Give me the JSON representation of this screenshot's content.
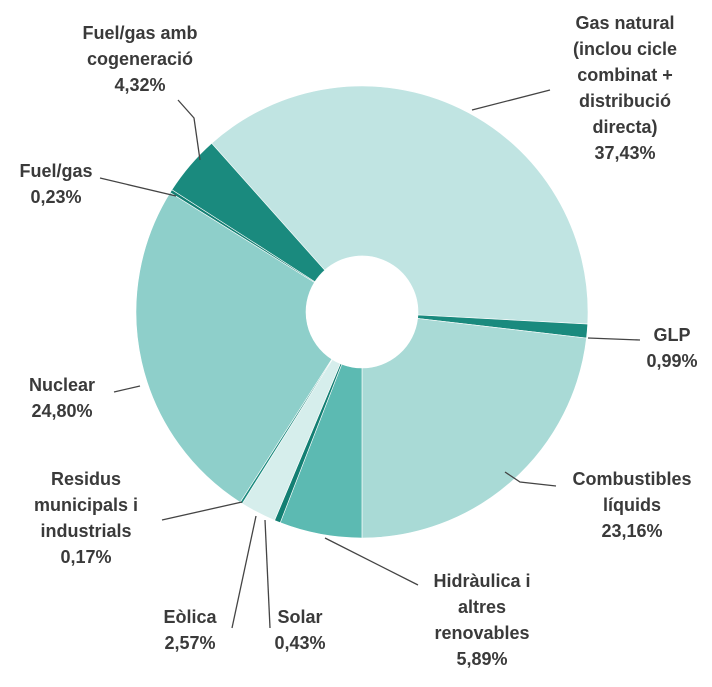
{
  "chart_data": {
    "type": "pie",
    "categories": [
      "Gas natural (inclou cicle combinat + distribució directa)",
      "GLP",
      "Combustibles líquids",
      "Hidràulica i altres renovables",
      "Solar",
      "Eòlica",
      "Residus municipals i industrials",
      "Nuclear",
      "Fuel/gas",
      "Fuel/gas amb cogeneració"
    ],
    "values": [
      37.43,
      0.99,
      23.16,
      5.89,
      0.43,
      2.57,
      0.17,
      24.8,
      0.23,
      4.32
    ],
    "value_labels": [
      "37,43%",
      "0,99%",
      "23,16%",
      "5,89%",
      "0,43%",
      "2,57%",
      "0,17%",
      "24,80%",
      "0,23%",
      "4,32%"
    ],
    "colors": [
      "#c0e4e2",
      "#1a8a7e",
      "#a9dad6",
      "#5cbab2",
      "#137f73",
      "#d6eeec",
      "#1a8a7e",
      "#8ecfca",
      "#137f73",
      "#1a8a7e"
    ]
  }
}
